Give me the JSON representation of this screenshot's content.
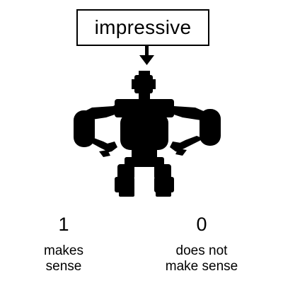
{
  "prompt_word": "impressive",
  "options": [
    {
      "value": "1",
      "line1": "makes",
      "line2": "sense"
    },
    {
      "value": "0",
      "line1": "does not",
      "line2": "make sense"
    }
  ],
  "colors": {
    "ink": "#000000",
    "background": "#ffffff"
  }
}
